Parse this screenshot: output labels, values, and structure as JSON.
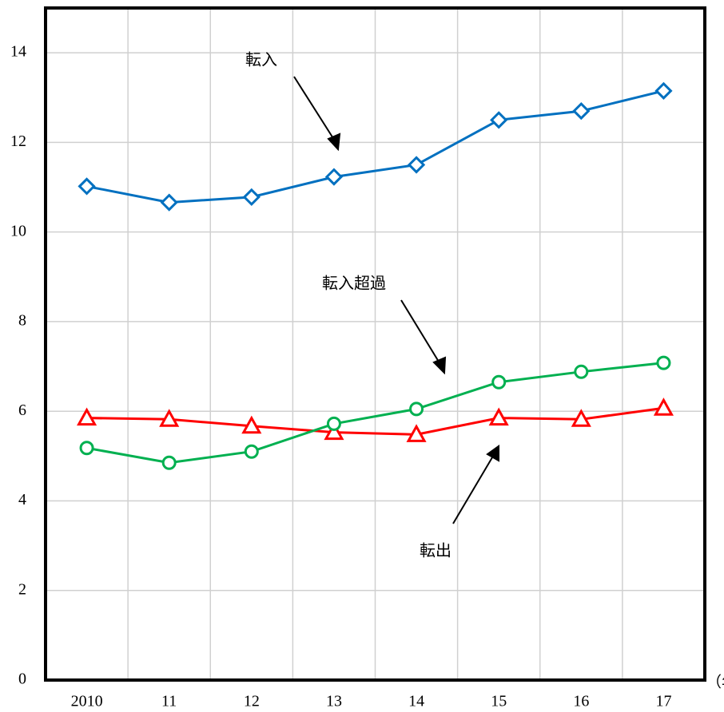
{
  "chart_data": {
    "type": "line",
    "x_label": "（年）",
    "categories": [
      "2010",
      "11",
      "12",
      "13",
      "14",
      "15",
      "16",
      "17"
    ],
    "series": [
      {
        "name": "転入",
        "color": "#0070c0",
        "marker": "diamond",
        "values": [
          11.02,
          10.66,
          10.78,
          11.23,
          11.5,
          12.5,
          12.7,
          13.15
        ]
      },
      {
        "name": "転出",
        "color": "#ff0000",
        "marker": "triangle",
        "values": [
          5.85,
          5.82,
          5.67,
          5.53,
          5.48,
          5.85,
          5.82,
          6.07
        ]
      },
      {
        "name": "転入超過",
        "color": "#00b050",
        "marker": "circle",
        "values": [
          5.18,
          4.85,
          5.1,
          5.72,
          6.05,
          6.65,
          6.88,
          7.08
        ]
      }
    ],
    "ylim": [
      0,
      15
    ],
    "yticks": [
      0,
      2,
      4,
      6,
      8,
      10,
      12,
      14
    ],
    "grid": true
  }
}
